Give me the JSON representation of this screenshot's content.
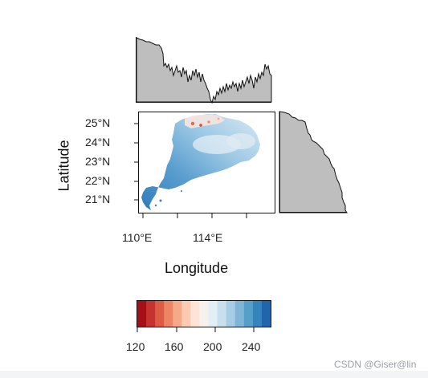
{
  "map": {
    "xlabel": "Longitude",
    "ylabel": "Latitude",
    "x_ticks": [
      "110°E",
      "114°E"
    ],
    "y_ticks": [
      "25°N",
      "24°N",
      "23°N",
      "22°N",
      "21°N"
    ]
  },
  "colorbar": {
    "tick_labels": [
      "120",
      "160",
      "200",
      "240"
    ],
    "colors": [
      "#a50f15",
      "#c6322d",
      "#dc5b45",
      "#ee8466",
      "#f6a989",
      "#fbcab2",
      "#fde4d6",
      "#f6f1ee",
      "#e3eef5",
      "#c8dfee",
      "#a6cde4",
      "#7fb6d8",
      "#569fcb",
      "#3585bd",
      "#2166ac"
    ]
  },
  "marginal_colors": {
    "fill": "#bebebe",
    "stroke": "#111111"
  },
  "watermark": "CSDN @Giser@lin"
}
